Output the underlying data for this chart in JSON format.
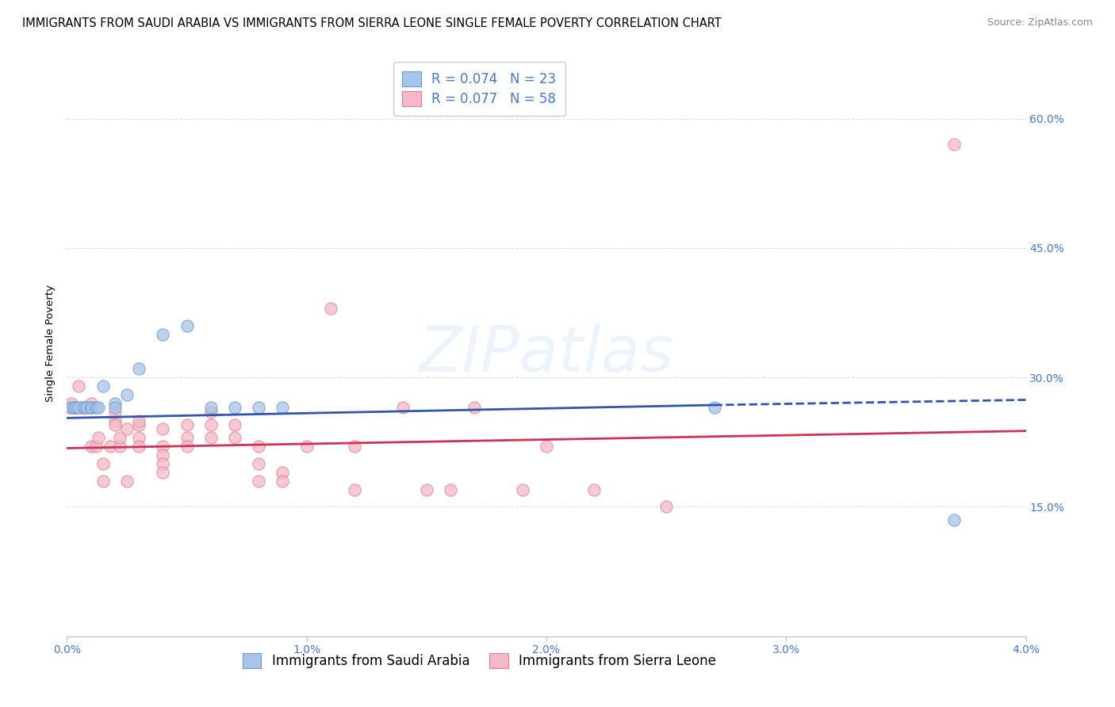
{
  "title": "IMMIGRANTS FROM SAUDI ARABIA VS IMMIGRANTS FROM SIERRA LEONE SINGLE FEMALE POVERTY CORRELATION CHART",
  "source": "Source: ZipAtlas.com",
  "ylabel": "Single Female Poverty",
  "xlim": [
    0.0,
    0.04
  ],
  "ylim": [
    0.0,
    0.68
  ],
  "xticks": [
    0.0,
    0.01,
    0.02,
    0.03,
    0.04
  ],
  "xtick_labels": [
    "0.0%",
    "1.0%",
    "2.0%",
    "3.0%",
    "4.0%"
  ],
  "yticks": [
    0.15,
    0.3,
    0.45,
    0.6
  ],
  "ytick_labels": [
    "15.0%",
    "30.0%",
    "45.0%",
    "60.0%"
  ],
  "legend_r1": "R = 0.074",
  "legend_n1": "N = 23",
  "legend_r2": "R = 0.077",
  "legend_n2": "N = 58",
  "color_blue_fill": "#a8c4e8",
  "color_blue_edge": "#6699cc",
  "color_pink_fill": "#f4b8c8",
  "color_pink_edge": "#e08090",
  "color_trend_blue": "#3355aa",
  "color_trend_pink": "#cc3355",
  "color_axis_text": "#4477cc",
  "color_grid": "#ddddee",
  "scatter_alpha": 0.75,
  "scatter_size": 120,
  "watermark": "ZIPatlas",
  "background_color": "#ffffff",
  "title_fontsize": 10.5,
  "source_fontsize": 9,
  "axis_label_fontsize": 9.5,
  "tick_fontsize": 10,
  "legend_fontsize": 12,
  "saudi_x": [
    0.0002,
    0.0003,
    0.0004,
    0.0005,
    0.0007,
    0.0008,
    0.001,
    0.001,
    0.0012,
    0.0013,
    0.0015,
    0.002,
    0.002,
    0.0025,
    0.003,
    0.004,
    0.005,
    0.006,
    0.007,
    0.008,
    0.009,
    0.027,
    0.037
  ],
  "saudi_y": [
    0.265,
    0.265,
    0.265,
    0.265,
    0.265,
    0.265,
    0.265,
    0.265,
    0.265,
    0.265,
    0.29,
    0.27,
    0.265,
    0.28,
    0.31,
    0.35,
    0.36,
    0.265,
    0.265,
    0.265,
    0.265,
    0.265,
    0.135
  ],
  "sierra_x": [
    0.0001,
    0.0002,
    0.0003,
    0.0004,
    0.0005,
    0.0006,
    0.0007,
    0.0008,
    0.001,
    0.001,
    0.001,
    0.0012,
    0.0013,
    0.0015,
    0.0015,
    0.0018,
    0.002,
    0.002,
    0.002,
    0.0022,
    0.0022,
    0.0025,
    0.0025,
    0.003,
    0.003,
    0.003,
    0.003,
    0.004,
    0.004,
    0.004,
    0.004,
    0.004,
    0.005,
    0.005,
    0.005,
    0.006,
    0.006,
    0.006,
    0.007,
    0.007,
    0.008,
    0.008,
    0.008,
    0.009,
    0.009,
    0.01,
    0.011,
    0.012,
    0.012,
    0.014,
    0.015,
    0.016,
    0.017,
    0.019,
    0.02,
    0.022,
    0.025,
    0.037
  ],
  "sierra_y": [
    0.265,
    0.27,
    0.265,
    0.265,
    0.29,
    0.265,
    0.265,
    0.265,
    0.27,
    0.265,
    0.22,
    0.22,
    0.23,
    0.2,
    0.18,
    0.22,
    0.25,
    0.245,
    0.26,
    0.22,
    0.23,
    0.24,
    0.18,
    0.23,
    0.22,
    0.245,
    0.25,
    0.22,
    0.21,
    0.2,
    0.24,
    0.19,
    0.23,
    0.245,
    0.22,
    0.245,
    0.23,
    0.26,
    0.245,
    0.23,
    0.22,
    0.2,
    0.18,
    0.19,
    0.18,
    0.22,
    0.38,
    0.22,
    0.17,
    0.265,
    0.17,
    0.17,
    0.265,
    0.17,
    0.22,
    0.17,
    0.15,
    0.57
  ],
  "saudi_trend_x0": 0.0,
  "saudi_trend_x1": 0.027,
  "saudi_trend_x2": 0.04,
  "saudi_trend_y0": 0.253,
  "saudi_trend_y1": 0.268,
  "saudi_trend_y2": 0.274,
  "sierra_trend_x0": 0.0,
  "sierra_trend_x1": 0.04,
  "sierra_trend_y0": 0.218,
  "sierra_trend_y1": 0.238
}
